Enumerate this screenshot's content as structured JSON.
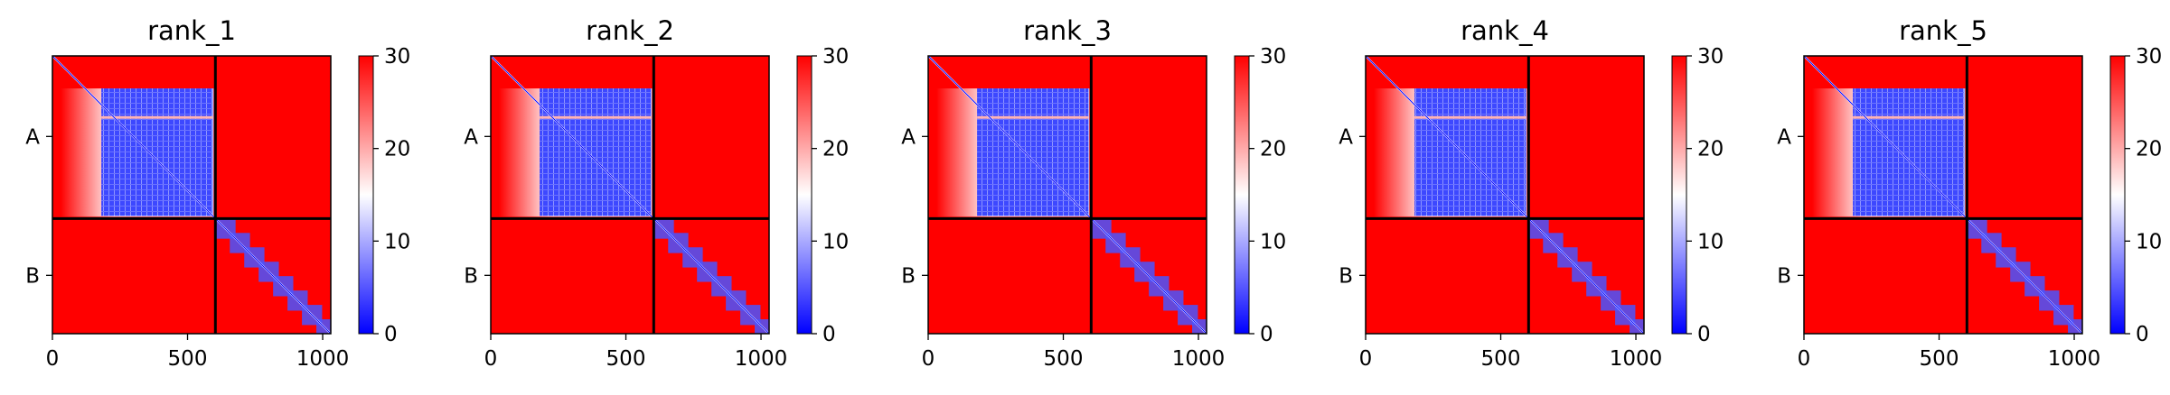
{
  "figure": {
    "colormap": {
      "low": "#0000ff",
      "mid": "#ffffff",
      "high": "#ff0000"
    },
    "divider_color": "#000000"
  },
  "chart_data": [
    {
      "type": "heatmap",
      "title": "rank_1",
      "x_range": [
        0,
        1030
      ],
      "chain_boundary": 603,
      "xticks": [
        0,
        500,
        1000
      ],
      "yticks": [
        "A",
        "B"
      ],
      "colorbar": {
        "range": [
          0,
          30
        ],
        "ticks": [
          0,
          10,
          20,
          30
        ]
      }
    },
    {
      "type": "heatmap",
      "title": "rank_2",
      "x_range": [
        0,
        1030
      ],
      "chain_boundary": 603,
      "xticks": [
        0,
        500,
        1000
      ],
      "yticks": [
        "A",
        "B"
      ],
      "colorbar": {
        "range": [
          0,
          30
        ],
        "ticks": [
          0,
          10,
          20,
          30
        ]
      }
    },
    {
      "type": "heatmap",
      "title": "rank_3",
      "x_range": [
        0,
        1030
      ],
      "chain_boundary": 603,
      "xticks": [
        0,
        500,
        1000
      ],
      "yticks": [
        "A",
        "B"
      ],
      "colorbar": {
        "range": [
          0,
          30
        ],
        "ticks": [
          0,
          10,
          20,
          30
        ]
      }
    },
    {
      "type": "heatmap",
      "title": "rank_4",
      "x_range": [
        0,
        1030
      ],
      "chain_boundary": 603,
      "xticks": [
        0,
        500,
        1000
      ],
      "yticks": [
        "A",
        "B"
      ],
      "colorbar": {
        "range": [
          0,
          30
        ],
        "ticks": [
          0,
          10,
          20,
          30
        ]
      }
    },
    {
      "type": "heatmap",
      "title": "rank_5",
      "x_range": [
        0,
        1030
      ],
      "chain_boundary": 603,
      "xticks": [
        0,
        500,
        1000
      ],
      "yticks": [
        "A",
        "B"
      ],
      "colorbar": {
        "range": [
          0,
          30
        ],
        "ticks": [
          0,
          10,
          20,
          30
        ]
      }
    }
  ]
}
